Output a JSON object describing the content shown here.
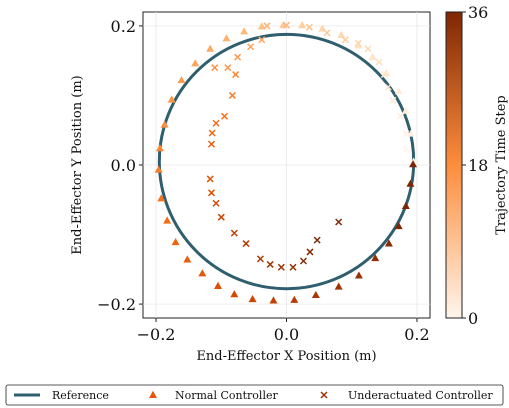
{
  "chart_data": {
    "type": "scatter",
    "xlabel": "End-Effector X Position (m)",
    "ylabel": "End-Effector Y Position (m)",
    "xlim": [
      -0.22,
      0.22
    ],
    "ylim": [
      -0.22,
      0.22
    ],
    "xticks": [
      -0.2,
      0.0,
      0.2
    ],
    "yticks": [
      -0.2,
      0.0,
      0.2
    ],
    "xtick_labels": [
      "−0.2",
      "0.0",
      "0.2"
    ],
    "ytick_labels": [
      "−0.2",
      "0.0",
      "0.2"
    ],
    "grid": true,
    "colorbar": {
      "label": "Trajectory Time Step",
      "range": [
        0,
        36
      ],
      "ticks": [
        0,
        18,
        36
      ],
      "tick_labels": [
        "0",
        "18",
        "36"
      ],
      "colormap": "Oranges",
      "color_low": "#fff5eb",
      "color_mid": "#fd8d3c",
      "color_high": "#7f2704"
    },
    "reference": {
      "name": "Reference",
      "shape": "circle",
      "center": [
        0.0,
        0.005
      ],
      "radius": 0.195,
      "color": "#2f5f6f"
    },
    "series": [
      {
        "name": "Normal Controller",
        "marker": "triangle",
        "points": [
          {
            "t": 0,
            "x": 0.195,
            "y": 0.005
          },
          {
            "t": 1,
            "x": 0.191,
            "y": 0.045
          },
          {
            "t": 2,
            "x": 0.183,
            "y": 0.078
          },
          {
            "t": 3,
            "x": 0.172,
            "y": 0.106
          },
          {
            "t": 4,
            "x": 0.153,
            "y": 0.132
          },
          {
            "t": 5,
            "x": 0.132,
            "y": 0.155
          },
          {
            "t": 6,
            "x": 0.11,
            "y": 0.172
          },
          {
            "t": 7,
            "x": 0.084,
            "y": 0.187
          },
          {
            "t": 8,
            "x": 0.055,
            "y": 0.196
          },
          {
            "t": 9,
            "x": 0.024,
            "y": 0.201
          },
          {
            "t": 10,
            "x": -0.005,
            "y": 0.201
          },
          {
            "t": 11,
            "x": -0.038,
            "y": 0.199
          },
          {
            "t": 12,
            "x": -0.065,
            "y": 0.192
          },
          {
            "t": 13,
            "x": -0.092,
            "y": 0.182
          },
          {
            "t": 14,
            "x": -0.117,
            "y": 0.167
          },
          {
            "t": 15,
            "x": -0.14,
            "y": 0.146
          },
          {
            "t": 16,
            "x": -0.161,
            "y": 0.122
          },
          {
            "t": 17,
            "x": -0.176,
            "y": 0.094
          },
          {
            "t": 18,
            "x": -0.187,
            "y": 0.058
          },
          {
            "t": 19,
            "x": -0.194,
            "y": 0.024
          },
          {
            "t": 20,
            "x": -0.196,
            "y": -0.007
          },
          {
            "t": 21,
            "x": -0.192,
            "y": -0.048
          },
          {
            "t": 22,
            "x": -0.183,
            "y": -0.08
          },
          {
            "t": 23,
            "x": -0.17,
            "y": -0.111
          },
          {
            "t": 24,
            "x": -0.152,
            "y": -0.136
          },
          {
            "t": 25,
            "x": -0.129,
            "y": -0.156
          },
          {
            "t": 26,
            "x": -0.105,
            "y": -0.174
          },
          {
            "t": 27,
            "x": -0.08,
            "y": -0.186
          },
          {
            "t": 28,
            "x": -0.052,
            "y": -0.193
          },
          {
            "t": 29,
            "x": -0.02,
            "y": -0.195
          },
          {
            "t": 30,
            "x": 0.012,
            "y": -0.194
          },
          {
            "t": 31,
            "x": 0.045,
            "y": -0.187
          },
          {
            "t": 32,
            "x": 0.08,
            "y": -0.175
          },
          {
            "t": 33,
            "x": 0.111,
            "y": -0.159
          },
          {
            "t": 34,
            "x": 0.136,
            "y": -0.134
          },
          {
            "t": 35,
            "x": 0.157,
            "y": -0.113
          },
          {
            "t": 36,
            "x": 0.172,
            "y": -0.088
          },
          {
            "t": 36,
            "x": 0.183,
            "y": -0.059
          },
          {
            "t": 36,
            "x": 0.19,
            "y": -0.027
          },
          {
            "t": 36,
            "x": 0.194,
            "y": 0.001
          }
        ]
      },
      {
        "name": "Underactuated Controller",
        "marker": "x",
        "points": [
          {
            "t": 0,
            "x": 0.185,
            "y": 0.022
          },
          {
            "t": 1,
            "x": 0.183,
            "y": 0.045
          },
          {
            "t": 2,
            "x": 0.175,
            "y": 0.07
          },
          {
            "t": 3,
            "x": 0.163,
            "y": 0.093
          },
          {
            "t": 4,
            "x": 0.156,
            "y": 0.112
          },
          {
            "t": 5,
            "x": 0.15,
            "y": 0.13
          },
          {
            "t": 6,
            "x": 0.142,
            "y": 0.148
          },
          {
            "t": 7,
            "x": 0.125,
            "y": 0.167
          },
          {
            "t": 8,
            "x": 0.11,
            "y": 0.175
          },
          {
            "t": 9,
            "x": 0.09,
            "y": 0.18
          },
          {
            "t": 10,
            "x": 0.062,
            "y": 0.19
          },
          {
            "t": 11,
            "x": 0.035,
            "y": 0.198
          },
          {
            "t": 12,
            "x": 0.0,
            "y": 0.201
          },
          {
            "t": 13,
            "x": -0.03,
            "y": 0.2
          },
          {
            "t": 14,
            "x": -0.038,
            "y": 0.18
          },
          {
            "t": 15,
            "x": -0.055,
            "y": 0.17
          },
          {
            "t": 16,
            "x": -0.075,
            "y": 0.155
          },
          {
            "t": 17,
            "x": -0.09,
            "y": 0.14
          },
          {
            "t": 18,
            "x": -0.11,
            "y": 0.14
          },
          {
            "t": 19,
            "x": -0.078,
            "y": 0.13
          },
          {
            "t": 20,
            "x": -0.083,
            "y": 0.1
          },
          {
            "t": 21,
            "x": -0.095,
            "y": 0.07
          },
          {
            "t": 22,
            "x": -0.108,
            "y": 0.06
          },
          {
            "t": 23,
            "x": -0.114,
            "y": 0.046
          },
          {
            "t": 24,
            "x": -0.115,
            "y": 0.03
          },
          {
            "t": 25,
            "x": -0.117,
            "y": -0.02
          },
          {
            "t": 26,
            "x": -0.115,
            "y": -0.04
          },
          {
            "t": 27,
            "x": -0.108,
            "y": -0.055
          },
          {
            "t": 28,
            "x": -0.1,
            "y": -0.075
          },
          {
            "t": 29,
            "x": -0.08,
            "y": -0.098
          },
          {
            "t": 30,
            "x": -0.062,
            "y": -0.113
          },
          {
            "t": 31,
            "x": -0.04,
            "y": -0.135
          },
          {
            "t": 32,
            "x": -0.025,
            "y": -0.143
          },
          {
            "t": 33,
            "x": -0.008,
            "y": -0.147
          },
          {
            "t": 34,
            "x": 0.01,
            "y": -0.147
          },
          {
            "t": 35,
            "x": 0.026,
            "y": -0.138
          },
          {
            "t": 35,
            "x": 0.036,
            "y": -0.125
          },
          {
            "t": 36,
            "x": 0.047,
            "y": -0.108
          },
          {
            "t": 36,
            "x": 0.08,
            "y": -0.082
          }
        ]
      }
    ],
    "legend": {
      "placement": "bottom",
      "entries": [
        "Reference",
        "Normal Controller",
        "Underactuated Controller"
      ]
    }
  }
}
